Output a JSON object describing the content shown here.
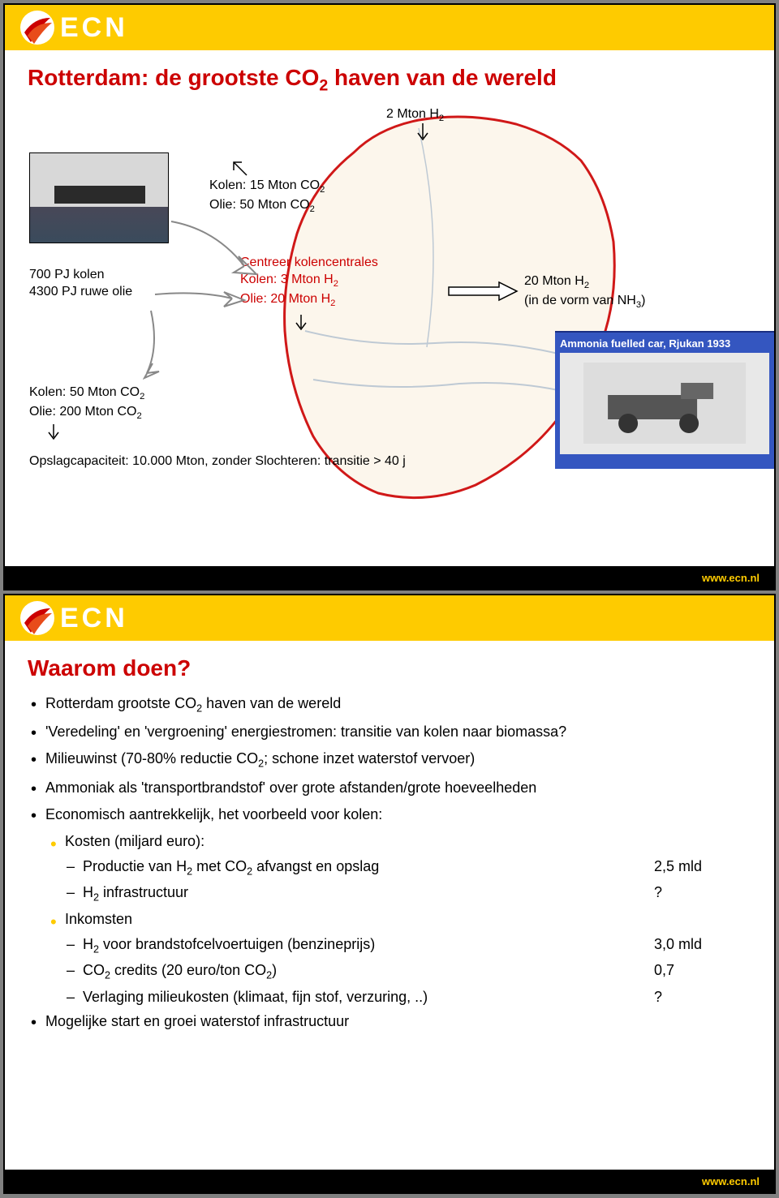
{
  "brand": {
    "name": "ECN",
    "footer_url": "www.ecn.nl"
  },
  "slide1": {
    "title_html": "Rotterdam: de grootste CO<sub>2</sub> haven van de wereld",
    "top_annot_html": "2 Mton H<sub>2</sub>",
    "kolen_olie_top_html": "Kolen: 15 Mton CO<sub>2</sub><br>Olie:    50 Mton CO<sub>2</sub>",
    "pj_block": "700 PJ kolen\n4300 PJ ruwe olie",
    "centreer_html": "Centreer kolencentrales<br>Kolen: 3 Mton H<sub>2</sub><br>Olie:   20 Mton H<sub>2</sub>",
    "east_annot_html": "20 Mton H<sub>2</sub><br>(in de vorm van NH<sub>3</sub>)",
    "bottom_left_html": "Kolen: 50 Mton CO<sub>2</sub><br>Olie:  200 Mton CO<sub>2</sub>",
    "opslag_text": "Opslagcapaciteit: 10.000 Mton, zonder Slochteren: transitie > 40 j",
    "ammonia_title": "Ammonia fuelled car, Rjukan 1933"
  },
  "slide2": {
    "title": "Waarom doen?",
    "bullets": [
      {
        "lvl": "b1",
        "html": "Rotterdam grootste CO<sub>2</sub> haven van de wereld"
      },
      {
        "lvl": "b1",
        "html": "'Veredeling' en 'vergroening' energiestromen: transitie van kolen naar biomassa?"
      },
      {
        "lvl": "b1",
        "html": "Milieuwinst (70-80% reductie CO<sub>2</sub>; schone inzet waterstof vervoer)"
      },
      {
        "lvl": "b1",
        "html": "Ammoniak als 'transportbrandstof' over grote afstanden/grote hoeveelheden"
      },
      {
        "lvl": "b1",
        "html": "Economisch aantrekkelijk, het voorbeeld voor kolen:"
      },
      {
        "lvl": "b1y",
        "html": "Kosten (miljard euro):"
      },
      {
        "lvl": "b2",
        "row": true,
        "label_html": "Productie van H<sub>2</sub> met CO<sub>2</sub> afvangst en opslag",
        "val": "2,5 mld"
      },
      {
        "lvl": "b2",
        "row": true,
        "label_html": "H<sub>2</sub> infrastructuur",
        "val": "?"
      },
      {
        "lvl": "b1y",
        "html": "Inkomsten"
      },
      {
        "lvl": "b2",
        "row": true,
        "label_html": "H<sub>2</sub> voor brandstofcelvoertuigen (benzineprijs)",
        "val": "3,0 mld"
      },
      {
        "lvl": "b2",
        "row": true,
        "label_html": "CO<sub>2</sub> credits (20 euro/ton CO<sub>2</sub>)",
        "val": "0,7"
      },
      {
        "lvl": "b2",
        "row": true,
        "label_html": "Verlaging milieukosten (klimaat, fijn stof, verzuring, ..)",
        "val": "?"
      },
      {
        "lvl": "b1",
        "html": "Mogelijke start en groei waterstof infrastructuur"
      }
    ]
  },
  "colors": {
    "brand_yellow": "#fecb00",
    "brand_red": "#cc0000",
    "footer_bg": "#000000",
    "map_outline": "#cc0000",
    "ammonia_bg": "#3456c0"
  }
}
